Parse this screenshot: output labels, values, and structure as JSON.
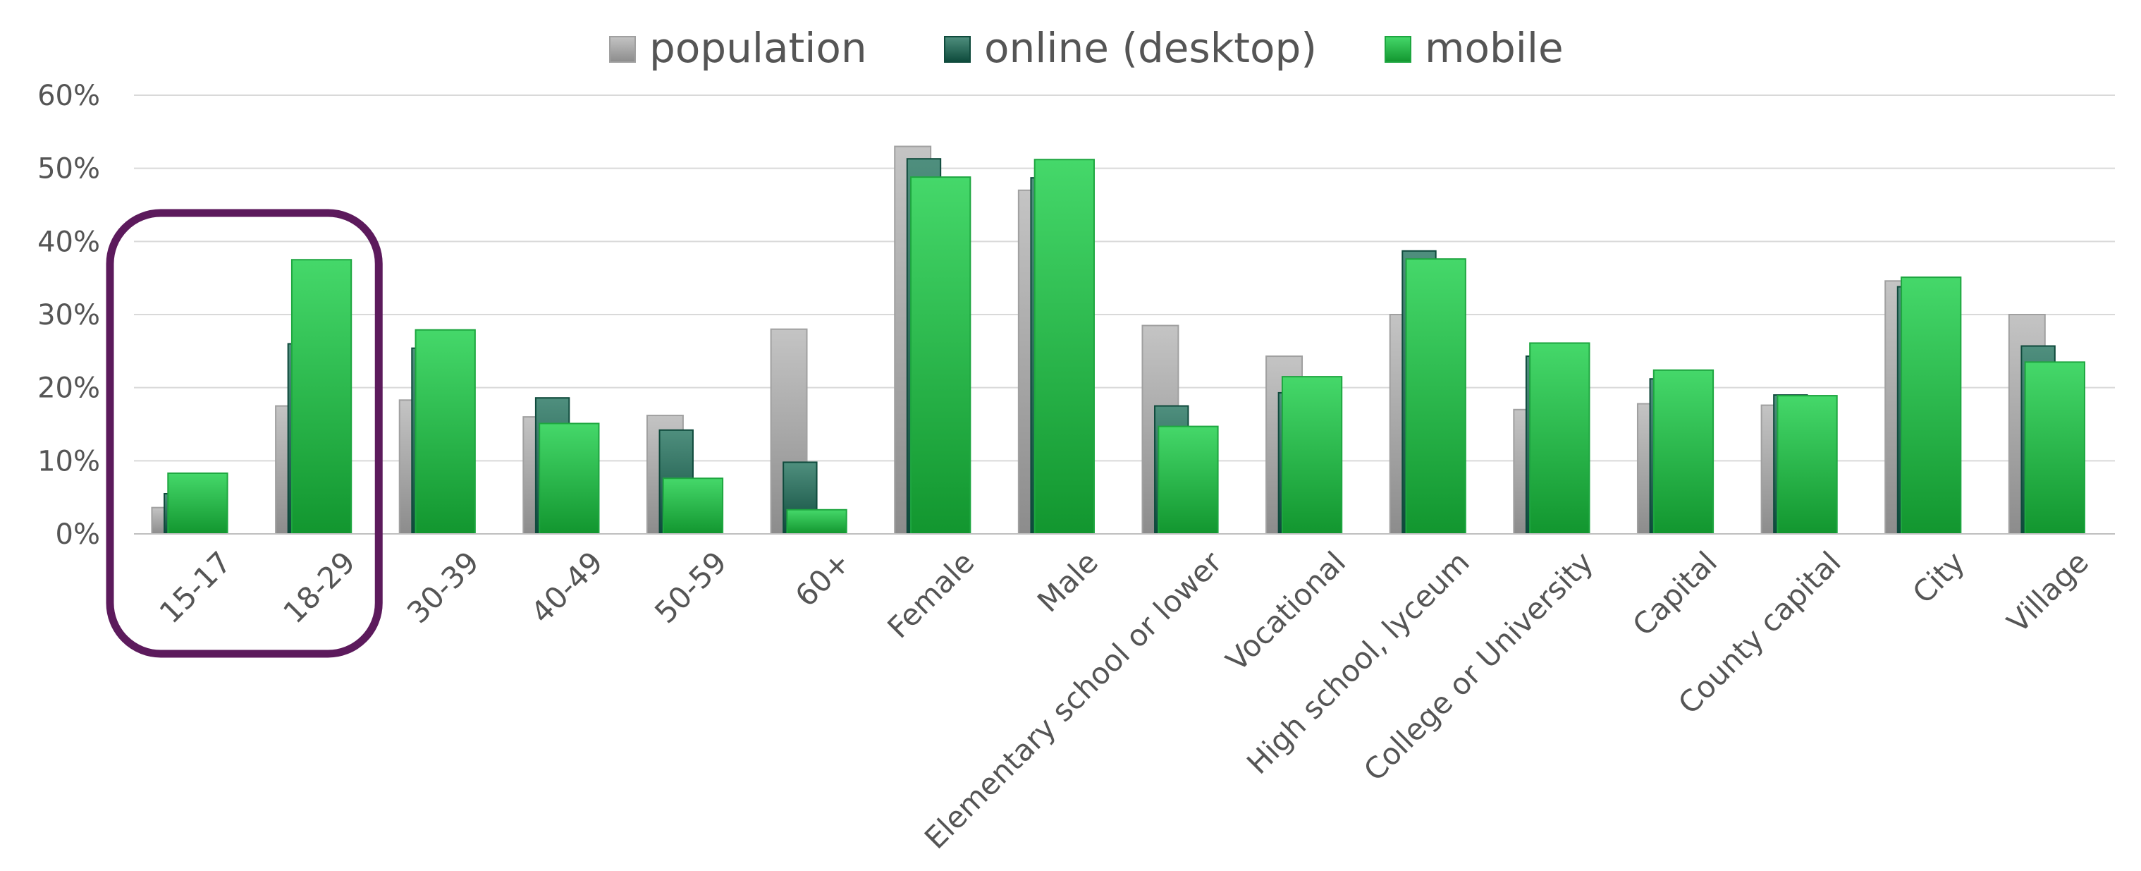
{
  "chart_data": {
    "type": "bar",
    "categories": [
      "15-17",
      "18-29",
      "30-39",
      "40-49",
      "50-59",
      "60+",
      "Female",
      "Male",
      "Elementary school or lower",
      "Vocational",
      "High school, lyceum",
      "College or University",
      "Capital",
      "County capital",
      "City",
      "Village"
    ],
    "series": [
      {
        "name": "population",
        "values": [
          3.6,
          17.5,
          18.3,
          16.0,
          16.2,
          28.0,
          53.0,
          47.0,
          28.5,
          24.3,
          30.0,
          17.0,
          17.8,
          17.6,
          34.6,
          30.0
        ]
      },
      {
        "name": "online (desktop)",
        "values": [
          5.5,
          26.0,
          25.4,
          18.6,
          14.2,
          9.8,
          51.3,
          48.7,
          17.5,
          19.3,
          38.7,
          24.3,
          21.2,
          19.0,
          33.8,
          25.7
        ]
      },
      {
        "name": "mobile",
        "values": [
          8.3,
          37.5,
          27.9,
          15.1,
          7.6,
          3.3,
          48.8,
          51.2,
          14.7,
          21.5,
          37.6,
          26.1,
          22.4,
          18.9,
          35.1,
          23.5
        ]
      }
    ],
    "y_ticks": [
      "0%",
      "10%",
      "20%",
      "30%",
      "40%",
      "50%",
      "60%"
    ],
    "ylim": [
      0,
      60
    ],
    "grid": true,
    "legend_position": "top",
    "highlight": {
      "categories": [
        "15-17",
        "18-29"
      ],
      "color": "#5c1a5c"
    },
    "colors": {
      "population": "#b3b3b3",
      "online_desktop": "#2f7a68",
      "mobile": "#2fcf5c",
      "grid": "#d9d9d9",
      "text": "#555555"
    }
  }
}
